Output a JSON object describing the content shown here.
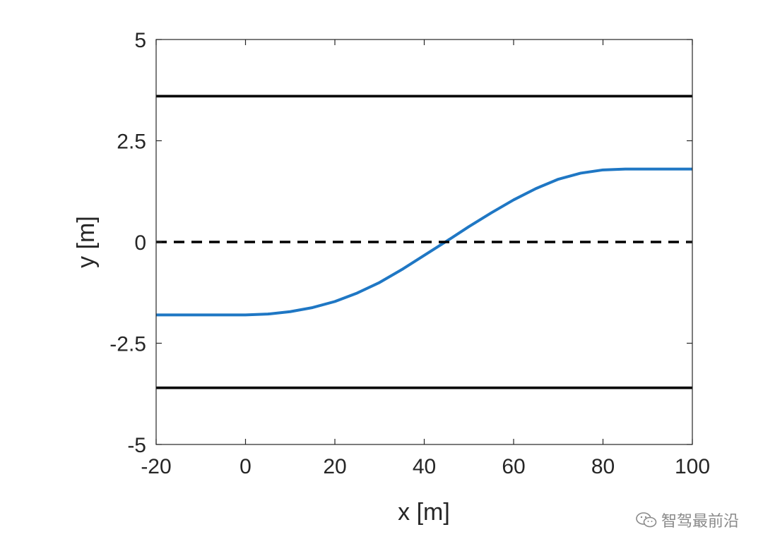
{
  "chart_data": {
    "type": "line",
    "title": "",
    "xlabel": "x [m]",
    "ylabel": "y [m]",
    "xlim": [
      -20,
      100
    ],
    "ylim": [
      -5,
      5
    ],
    "xticks": [
      -20,
      0,
      20,
      40,
      60,
      80,
      100
    ],
    "yticks": [
      -5,
      -2.5,
      0,
      2.5,
      5
    ],
    "ytick_labels": [
      "-5",
      "-2.5",
      "0",
      "2.5",
      "5"
    ],
    "grid": false,
    "series": [
      {
        "color": "#1f77c4",
        "style": "solid",
        "x": [
          -20,
          -10,
          0,
          5,
          10,
          15,
          20,
          25,
          30,
          35,
          40,
          45,
          50,
          55,
          60,
          65,
          70,
          75,
          80,
          85,
          90,
          100
        ],
        "y": [
          -1.8,
          -1.8,
          -1.8,
          -1.78,
          -1.72,
          -1.62,
          -1.47,
          -1.26,
          -1.0,
          -0.68,
          -0.33,
          0.02,
          0.38,
          0.72,
          1.04,
          1.32,
          1.55,
          1.7,
          1.78,
          1.8,
          1.8,
          1.8
        ]
      },
      {
        "color": "#000000",
        "style": "solid",
        "x": [
          -20,
          100
        ],
        "y": [
          3.6,
          3.6
        ]
      },
      {
        "color": "#000000",
        "style": "dashed",
        "x": [
          -20,
          100
        ],
        "y": [
          0,
          0
        ]
      },
      {
        "color": "#000000",
        "style": "solid",
        "x": [
          -20,
          100
        ],
        "y": [
          -3.6,
          -3.6
        ]
      }
    ]
  },
  "watermark": {
    "text": "智驾最前沿",
    "icon": "wechat-icon"
  }
}
